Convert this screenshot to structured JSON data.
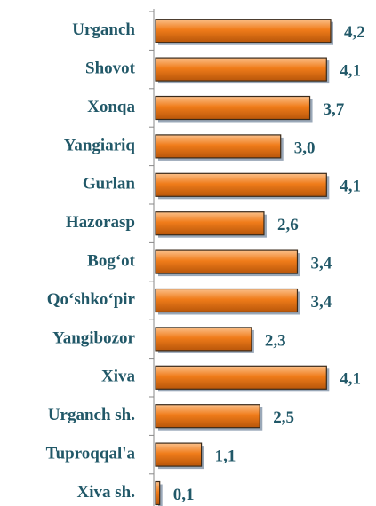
{
  "chart_data": {
    "type": "bar",
    "orientation": "horizontal",
    "categories": [
      "Urganch",
      "Shovot",
      "Xonqa",
      "Yangiariq",
      "Gurlan",
      "Hazorasp",
      "Bog‘ot",
      "Qo‘shko‘pir",
      "Yangibozor",
      "Xiva",
      "Urganch sh.",
      "Tuproqqal'a",
      "Xiva sh."
    ],
    "values": [
      4.2,
      4.1,
      3.7,
      3.0,
      4.1,
      2.6,
      3.4,
      3.4,
      2.3,
      4.1,
      2.5,
      1.1,
      0.1
    ],
    "value_labels": [
      "4,2",
      "4,1",
      "3,7",
      "3,0",
      "4,1",
      "2,6",
      "3,4",
      "3,4",
      "2,3",
      "4,1",
      "2,5",
      "1,1",
      "0,1"
    ],
    "color": "#f07c1a"
  }
}
